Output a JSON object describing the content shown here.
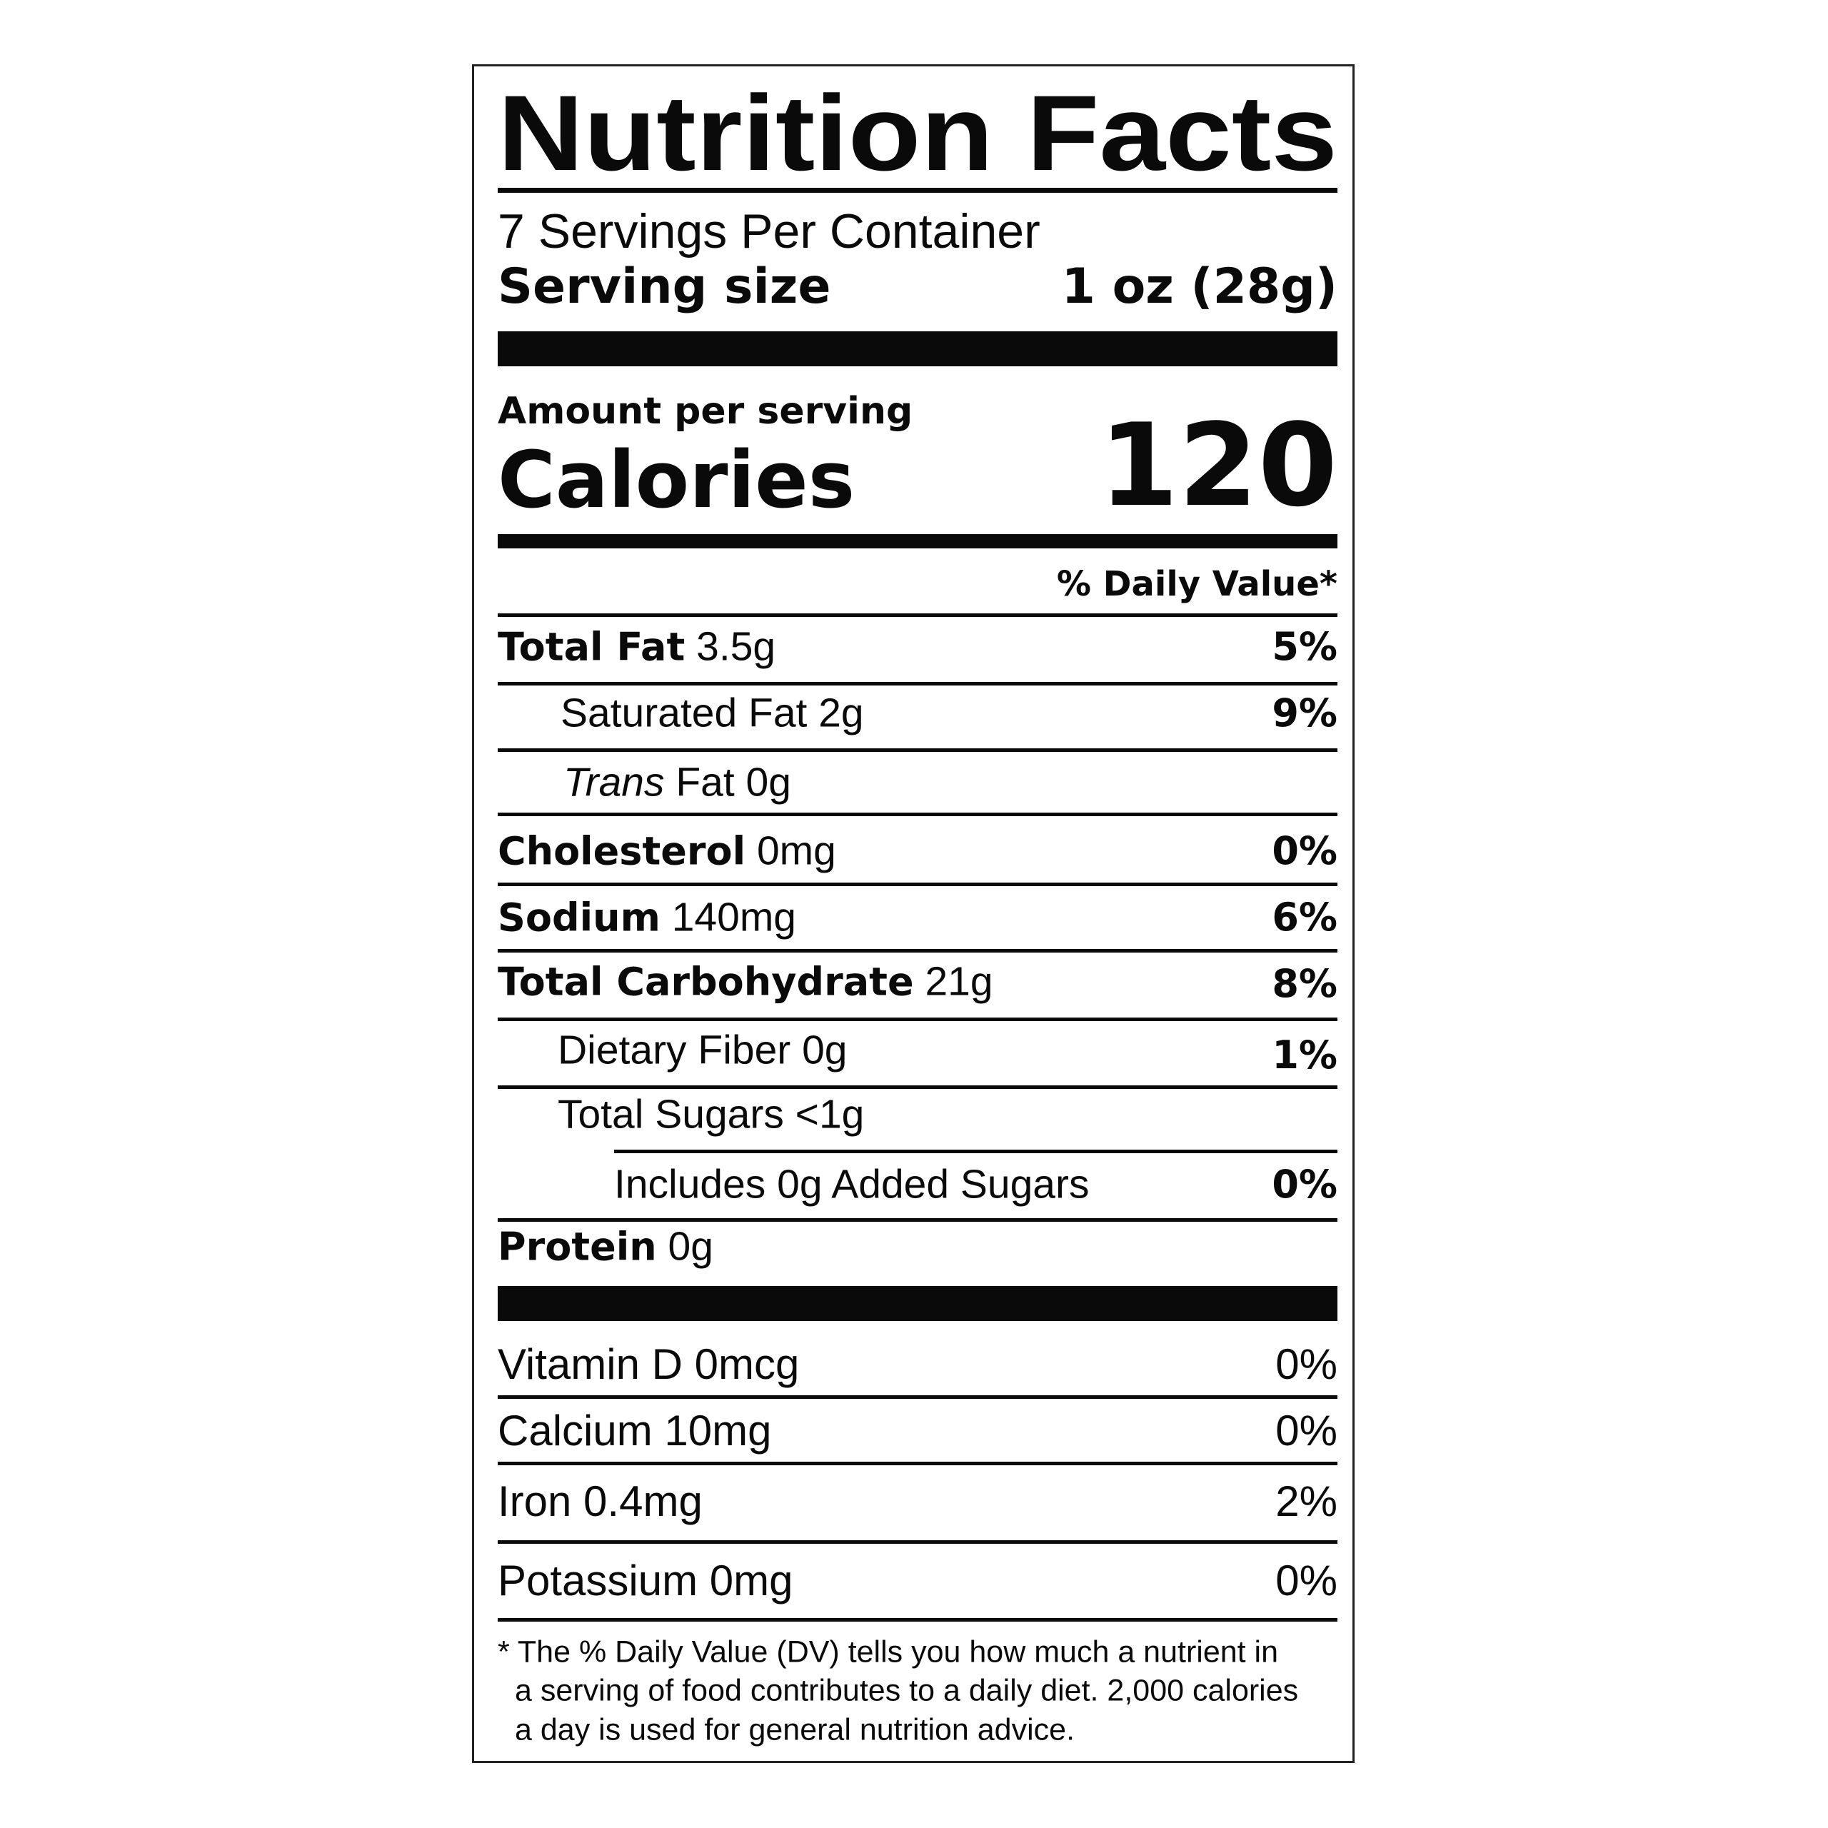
{
  "title": "Nutrition Facts",
  "servings_per_container": "7 Servings Per Container",
  "serving_size": {
    "label": "Serving size",
    "value": "1 oz (28g)"
  },
  "amount_per_serving": "Amount per serving",
  "calories": {
    "label": "Calories",
    "value": "120"
  },
  "daily_value_header": "% Daily Value*",
  "nutrients": [
    {
      "label": "Total Fat",
      "amount": "3.5g",
      "dv": "5%"
    },
    {
      "label": "Saturated Fat 2g",
      "dv": "9%"
    },
    {
      "label_italic": "Trans",
      "label": " Fat 0g"
    },
    {
      "label": "Cholesterol",
      "amount": "0mg",
      "dv": "0%"
    },
    {
      "label": "Sodium",
      "amount": "140mg",
      "dv": "6%"
    },
    {
      "label": "Total Carbohydrate",
      "amount": "21g",
      "dv": "8%"
    },
    {
      "label": "Dietary Fiber 0g",
      "dv": "1%"
    },
    {
      "label": "Total Sugars <1g"
    },
    {
      "label": "Includes 0g Added Sugars",
      "dv": "0%"
    },
    {
      "label": "Protein",
      "amount": "0g"
    }
  ],
  "vitamins": [
    {
      "label": "Vitamin D 0mcg",
      "dv": "0%"
    },
    {
      "label": "Calcium 10mg",
      "dv": "0%"
    },
    {
      "label": "Iron 0.4mg",
      "dv": "2%"
    },
    {
      "label": "Potassium 0mg",
      "dv": "0%"
    }
  ],
  "footnote": [
    "* The % Daily Value (DV) tells you how much a nutrient in",
    "a serving of food contributes to a daily diet. 2,000 calories",
    "a day is used for general nutrition advice."
  ]
}
